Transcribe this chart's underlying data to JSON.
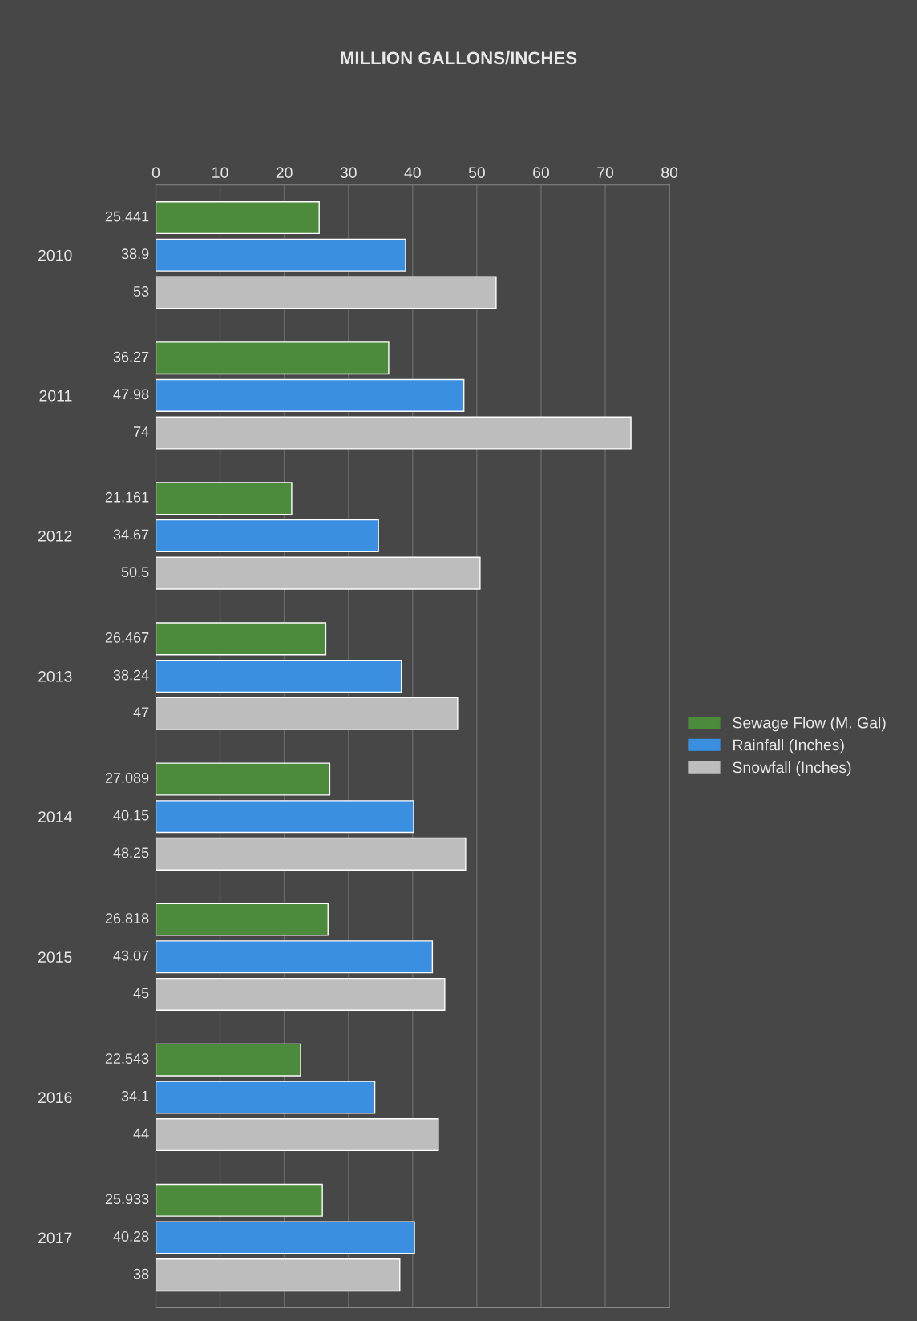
{
  "chart_data": {
    "type": "bar",
    "orientation": "horizontal",
    "title": "MILLION GALLONS/INCHES",
    "categories": [
      "2010",
      "2011",
      "2012",
      "2013",
      "2014",
      "2015",
      "2016",
      "2017"
    ],
    "series": [
      {
        "name": "Sewage Flow (M. Gal)",
        "color": "#4c8a3c",
        "values": [
          25.441,
          36.27,
          21.161,
          26.467,
          27.089,
          26.818,
          22.543,
          25.933
        ]
      },
      {
        "name": "Rainfall (Inches)",
        "color": "#3a8fe0",
        "values": [
          38.9,
          47.98,
          34.67,
          38.24,
          40.15,
          43.07,
          34.1,
          40.28
        ]
      },
      {
        "name": "Snowfall (Inches)",
        "color": "#bdbdbd",
        "values": [
          53,
          74,
          50.5,
          47,
          48.25,
          45,
          44,
          38
        ]
      }
    ],
    "xlim": [
      0,
      80
    ],
    "xticks": [
      0,
      10,
      20,
      30,
      40,
      50,
      60,
      70,
      80
    ],
    "grid": "x",
    "legend": "right",
    "data_labels": true
  }
}
